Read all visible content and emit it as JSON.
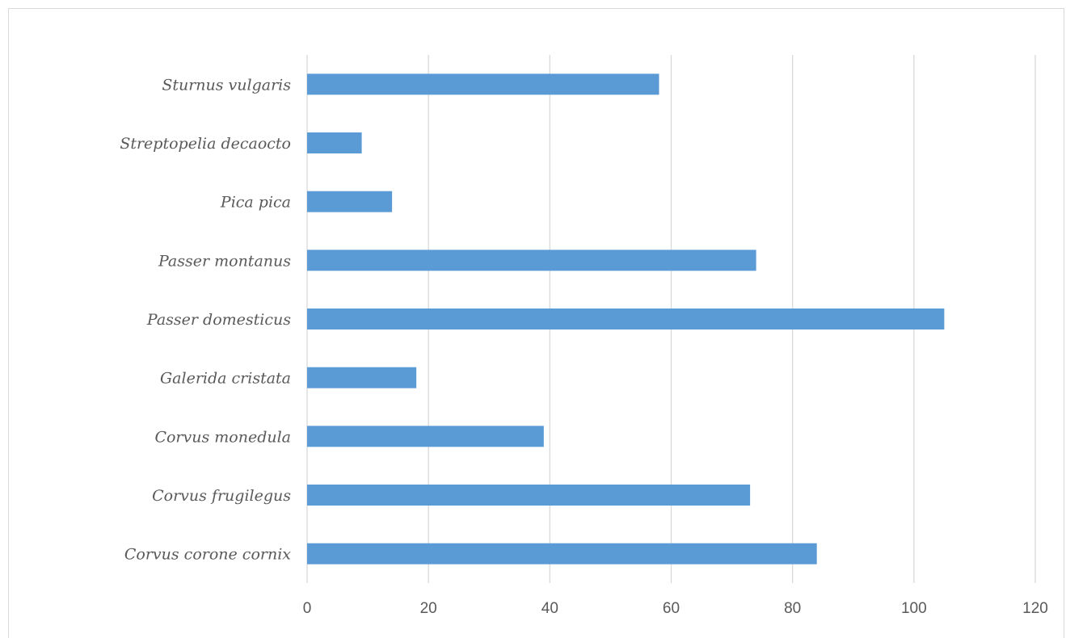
{
  "chart_data": {
    "type": "bar",
    "orientation": "horizontal",
    "categories": [
      "Sturnus vulgaris",
      "Streptopelia decaocto",
      "Pica pica",
      "Passer montanus",
      "Passer domesticus",
      "Galerida cristata",
      "Corvus monedula",
      "Corvus frugilegus",
      "Corvus corone cornix"
    ],
    "values": [
      58,
      9,
      14,
      74,
      105,
      18,
      39,
      73,
      84
    ],
    "xlim": [
      0,
      120
    ],
    "xticks": [
      0,
      20,
      40,
      60,
      80,
      100,
      120
    ],
    "tick_labels": [
      "0",
      "20",
      "40",
      "60",
      "80",
      "100",
      "120"
    ],
    "grid": true,
    "bar_color": "#5b9bd5",
    "title": "",
    "xlabel": "",
    "ylabel": ""
  }
}
